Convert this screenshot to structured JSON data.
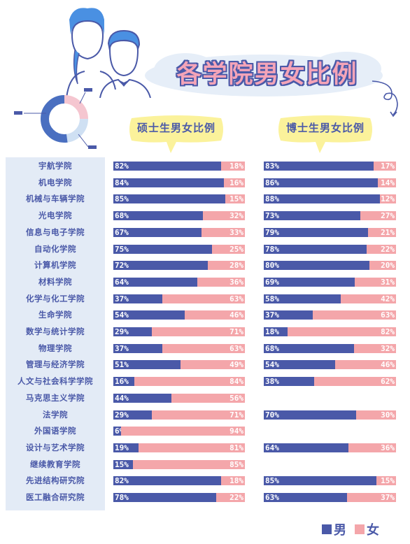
{
  "title": "各学院男女比例",
  "headers": {
    "master": "硕士生男女比例",
    "doctor": "博士生男女比例"
  },
  "colors": {
    "male": "#4a59a8",
    "female": "#f4a6aa",
    "label_bg": "#e3ebf6"
  },
  "legend": {
    "male": "男",
    "female": "女"
  },
  "chart_data": {
    "type": "bar",
    "stacked": true,
    "orientation": "horizontal",
    "title": "各学院男女比例",
    "categories": [
      "宇航学院",
      "机电学院",
      "机械与车辆学院",
      "光电学院",
      "信息与电子学院",
      "自动化学院",
      "计算机学院",
      "材料学院",
      "化学与化工学院",
      "生命学院",
      "数学与统计学院",
      "物理学院",
      "管理与经济学院",
      "人文与社会科学学院",
      "马克思主义学院",
      "法学院",
      "外国语学院",
      "设计与艺术学院",
      "继续教育学院",
      "先进结构研究院",
      "医工融合研究院"
    ],
    "series": [
      {
        "name": "硕士生男女比例",
        "male": [
          82,
          84,
          85,
          68,
          67,
          75,
          72,
          64,
          37,
          54,
          29,
          37,
          51,
          16,
          44,
          29,
          6,
          19,
          15,
          82,
          78
        ],
        "female": [
          18,
          16,
          15,
          32,
          33,
          25,
          28,
          36,
          63,
          46,
          71,
          63,
          49,
          84,
          56,
          71,
          94,
          81,
          85,
          18,
          22
        ]
      },
      {
        "name": "博士生男女比例",
        "male": [
          83,
          86,
          88,
          73,
          79,
          78,
          80,
          69,
          58,
          37,
          18,
          68,
          54,
          38,
          null,
          70,
          null,
          64,
          null,
          85,
          63
        ],
        "female": [
          17,
          14,
          12,
          27,
          21,
          22,
          20,
          31,
          42,
          63,
          82,
          32,
          46,
          62,
          null,
          30,
          null,
          36,
          null,
          15,
          37
        ]
      }
    ],
    "legend": [
      "男",
      "女"
    ],
    "legend_position": "bottom-right",
    "xlim": [
      0,
      100
    ]
  }
}
